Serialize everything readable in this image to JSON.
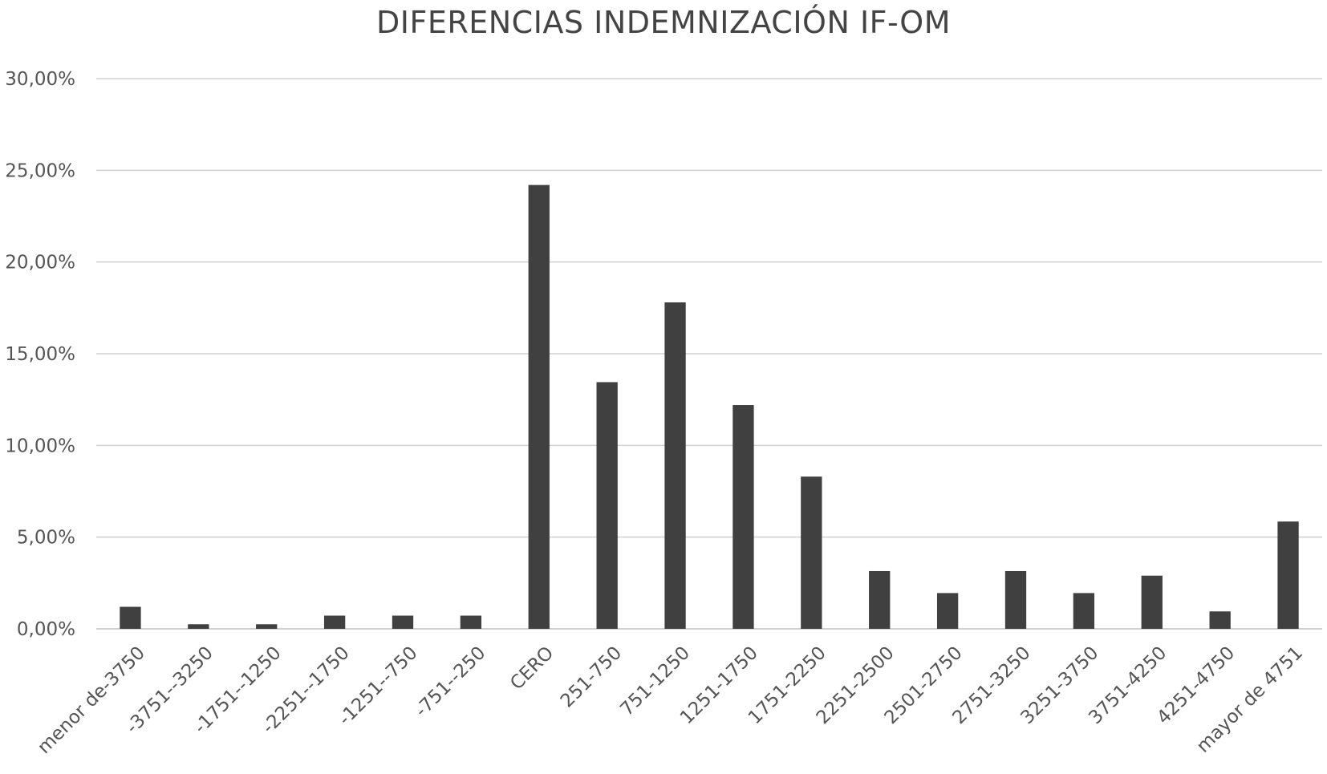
{
  "chart_data": {
    "type": "bar",
    "title": "DIFERENCIAS INDEMNIZACIÓN IF-OM",
    "xlabel": "",
    "ylabel": "",
    "categories": [
      "menor de-3750",
      "-3751--3250",
      "-1751--1250",
      "-2251--1750",
      "-1251--750",
      "-751--250",
      "CERO",
      "251-750",
      "751-1250",
      "1251-1750",
      "1751-2250",
      "2251-2500",
      "2501-2750",
      "2751-3250",
      "3251-3750",
      "3751-4250",
      "4251-4750",
      "mayor de 4751"
    ],
    "values": [
      1.2,
      0.25,
      0.25,
      0.72,
      0.72,
      0.72,
      24.2,
      13.45,
      17.8,
      12.2,
      8.3,
      3.15,
      1.95,
      3.15,
      1.95,
      2.9,
      0.95,
      5.85
    ],
    "ylim": [
      0,
      30
    ],
    "yticks": [
      0,
      5,
      10,
      15,
      20,
      25,
      30
    ],
    "ytick_labels": [
      "0,00%",
      "5,00%",
      "10,00%",
      "15,00%",
      "20,00%",
      "25,00%",
      "30,00%"
    ],
    "grid": true,
    "legend": "none",
    "bar_color": "#404040",
    "grid_color": "#d0d0d0"
  }
}
